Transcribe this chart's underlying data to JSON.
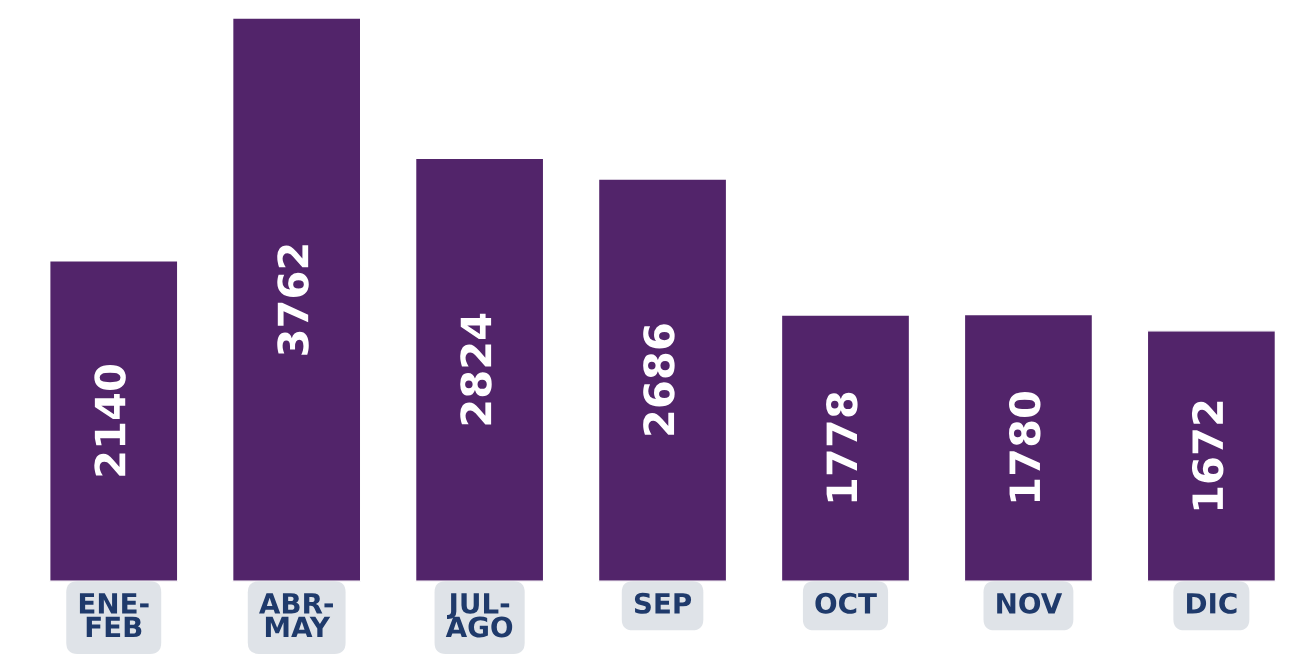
{
  "chart_data": {
    "type": "bar",
    "categories": [
      "ENE-\nFEB",
      "ABR-\nMAY",
      "JUL-\nAGO",
      "SEP",
      "OCT",
      "NOV",
      "DIC"
    ],
    "values": [
      2140,
      3762,
      2824,
      2686,
      1778,
      1780,
      1672
    ],
    "color": "#52246a",
    "data_labels": true
  }
}
